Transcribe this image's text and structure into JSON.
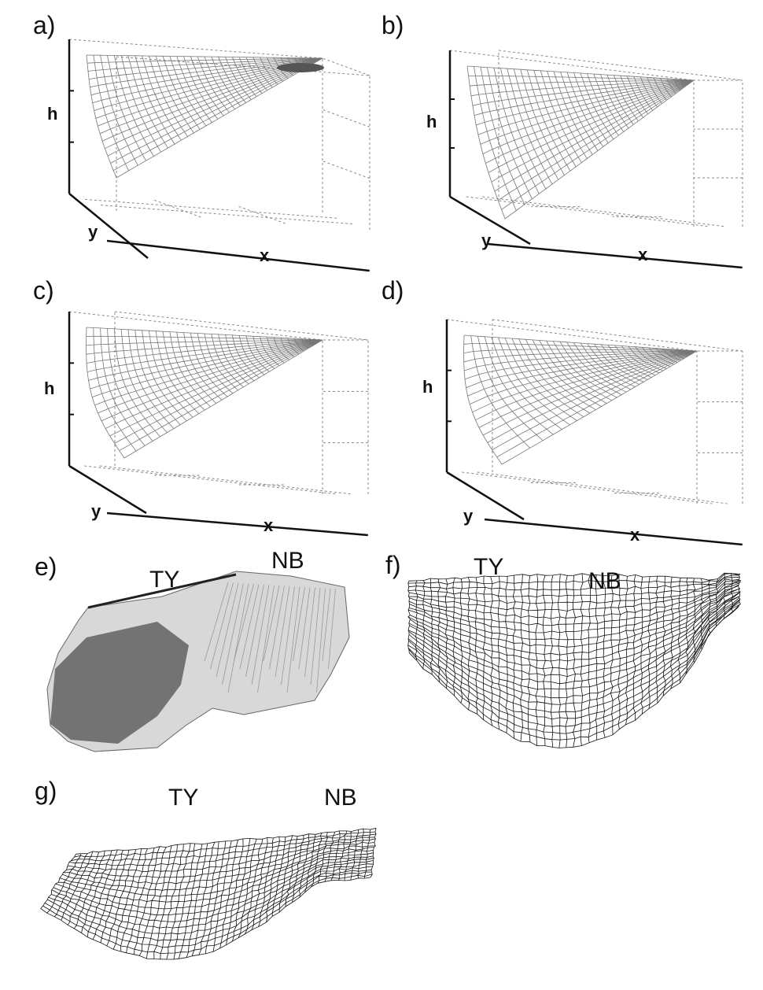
{
  "panels": {
    "a": {
      "label": "a)",
      "h": "h",
      "y": "y",
      "x": "x"
    },
    "b": {
      "label": "b)",
      "h": "h",
      "y": "y",
      "x": "x"
    },
    "c": {
      "label": "c)",
      "h": "h",
      "y": "y",
      "x": "x"
    },
    "d": {
      "label": "d)",
      "h": "h",
      "y": "y",
      "x": "x"
    },
    "e": {
      "label": "e)",
      "site1": "TY",
      "site2": "NB"
    },
    "f": {
      "label": "f)",
      "site1": "TY",
      "site2": "NB"
    },
    "g": {
      "label": "g)",
      "site1": "TY",
      "site2": "NB"
    }
  }
}
